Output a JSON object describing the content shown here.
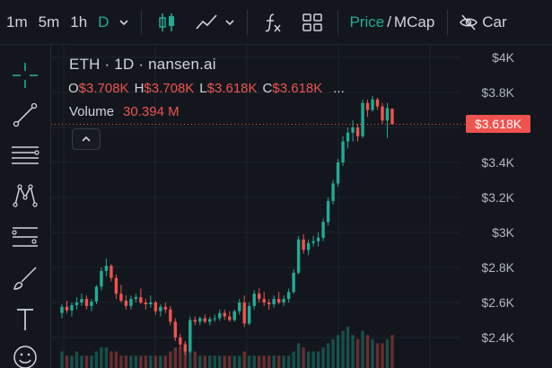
{
  "toolbar": {
    "timeframes": [
      "1m",
      "5m",
      "1h",
      "D"
    ],
    "active_timeframe": "D",
    "price_label": "Price",
    "slash": "/",
    "mcap_label": "MCap",
    "eye_label": "Car"
  },
  "legend": {
    "title": "ETH · 1D · nansen.ai",
    "o_label": "O",
    "o_value": "$3.708K",
    "h_label": "H",
    "h_value": "$3.708K",
    "l_label": "L",
    "l_value": "$3.618K",
    "c_label": "C",
    "c_value": "$3.618K",
    "more": "...",
    "volume_label": "Volume",
    "volume_value": "30.394 M"
  },
  "colors": {
    "up": "#22ab94",
    "down": "#ef5350",
    "background": "#13171d",
    "grid": "#1e232b"
  },
  "chart_data": {
    "type": "candlestick",
    "symbol": "ETH",
    "interval": "1D",
    "y_axis_labels": [
      "$4K",
      "$3.8K",
      "$3.6K",
      "$3.4K",
      "$3.2K",
      "$3K",
      "$2.8K",
      "$2.6K",
      "$2.4K"
    ],
    "ylim": [
      2300,
      4000
    ],
    "last_price_label": "$3.618K",
    "last_price": 3618,
    "candles": [
      [
        2540,
        2590,
        2510,
        2575
      ],
      [
        2575,
        2610,
        2540,
        2555
      ],
      [
        2555,
        2600,
        2520,
        2585
      ],
      [
        2585,
        2630,
        2560,
        2600
      ],
      [
        2600,
        2650,
        2580,
        2620
      ],
      [
        2620,
        2640,
        2560,
        2580
      ],
      [
        2580,
        2620,
        2550,
        2605
      ],
      [
        2605,
        2700,
        2590,
        2690
      ],
      [
        2690,
        2800,
        2670,
        2780
      ],
      [
        2780,
        2850,
        2750,
        2810
      ],
      [
        2810,
        2820,
        2720,
        2740
      ],
      [
        2740,
        2760,
        2620,
        2650
      ],
      [
        2650,
        2700,
        2600,
        2610
      ],
      [
        2610,
        2640,
        2560,
        2580
      ],
      [
        2580,
        2640,
        2560,
        2620
      ],
      [
        2620,
        2650,
        2600,
        2630
      ],
      [
        2630,
        2680,
        2590,
        2600
      ],
      [
        2600,
        2620,
        2560,
        2590
      ],
      [
        2590,
        2640,
        2570,
        2600
      ],
      [
        2600,
        2610,
        2530,
        2550
      ],
      [
        2550,
        2590,
        2520,
        2575
      ],
      [
        2575,
        2600,
        2540,
        2560
      ],
      [
        2560,
        2580,
        2470,
        2490
      ],
      [
        2490,
        2510,
        2380,
        2400
      ],
      [
        2400,
        2420,
        2340,
        2360
      ],
      [
        2360,
        2380,
        2300,
        2320
      ],
      [
        2320,
        2520,
        2310,
        2500
      ],
      [
        2500,
        2520,
        2470,
        2490
      ],
      [
        2490,
        2520,
        2470,
        2510
      ],
      [
        2510,
        2530,
        2480,
        2490
      ],
      [
        2490,
        2520,
        2470,
        2505
      ],
      [
        2505,
        2530,
        2490,
        2510
      ],
      [
        2510,
        2560,
        2495,
        2540
      ],
      [
        2540,
        2560,
        2500,
        2520
      ],
      [
        2520,
        2550,
        2490,
        2500
      ],
      [
        2500,
        2560,
        2490,
        2550
      ],
      [
        2550,
        2620,
        2530,
        2600
      ],
      [
        2600,
        2640,
        2460,
        2480
      ],
      [
        2480,
        2600,
        2470,
        2580
      ],
      [
        2580,
        2670,
        2560,
        2650
      ],
      [
        2650,
        2680,
        2600,
        2620
      ],
      [
        2620,
        2660,
        2580,
        2600
      ],
      [
        2600,
        2620,
        2560,
        2590
      ],
      [
        2590,
        2640,
        2570,
        2620
      ],
      [
        2620,
        2660,
        2590,
        2600
      ],
      [
        2600,
        2640,
        2580,
        2620
      ],
      [
        2620,
        2680,
        2600,
        2660
      ],
      [
        2660,
        2790,
        2650,
        2770
      ],
      [
        2770,
        2980,
        2760,
        2960
      ],
      [
        2960,
        2990,
        2880,
        2900
      ],
      [
        2900,
        2960,
        2870,
        2940
      ],
      [
        2940,
        2980,
        2920,
        2950
      ],
      [
        2950,
        3000,
        2920,
        2970
      ],
      [
        2970,
        3080,
        2950,
        3060
      ],
      [
        3060,
        3200,
        3040,
        3180
      ],
      [
        3180,
        3300,
        3160,
        3280
      ],
      [
        3280,
        3420,
        3260,
        3400
      ],
      [
        3400,
        3550,
        3380,
        3520
      ],
      [
        3520,
        3600,
        3480,
        3570
      ],
      [
        3570,
        3640,
        3520,
        3600
      ],
      [
        3600,
        3620,
        3520,
        3550
      ],
      [
        3550,
        3760,
        3540,
        3740
      ],
      [
        3740,
        3760,
        3660,
        3700
      ],
      [
        3700,
        3780,
        3690,
        3760
      ],
      [
        3760,
        3770,
        3700,
        3720
      ],
      [
        3720,
        3740,
        3620,
        3640
      ],
      [
        3640,
        3740,
        3540,
        3710
      ],
      [
        3708,
        3708,
        3618,
        3618
      ]
    ],
    "volumes": [
      4,
      3,
      3,
      4,
      3,
      3,
      3,
      4,
      5,
      5,
      4,
      4,
      3,
      3,
      3,
      3,
      3,
      3,
      3,
      3,
      3,
      3,
      4,
      5,
      5,
      6,
      6,
      4,
      3,
      3,
      3,
      3,
      3,
      3,
      3,
      3,
      3,
      4,
      3,
      3,
      3,
      3,
      3,
      3,
      3,
      3,
      3,
      4,
      6,
      5,
      4,
      4,
      4,
      5,
      6,
      7,
      8,
      9,
      10,
      8,
      7,
      9,
      8,
      7,
      6,
      6,
      7,
      8
    ]
  }
}
